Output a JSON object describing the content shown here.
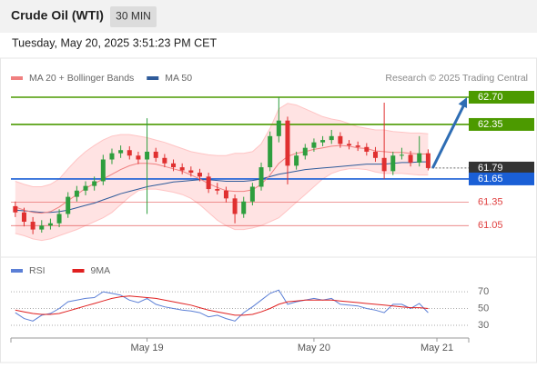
{
  "header": {
    "title": "Crude Oil (WTI)",
    "timeframe": "30 MIN",
    "timestamp": "Tuesday, May 20, 2025 3:51:23 PM CET"
  },
  "chart_data": {
    "type": "candlestick",
    "legend": [
      {
        "name": "MA 20 + Bollinger Bands",
        "color": "#f08080"
      },
      {
        "name": "MA 50",
        "color": "#2f5b9a"
      }
    ],
    "credit": "Research © 2025 Trading Central",
    "ylim": [
      60.68,
      62.84
    ],
    "up_color": "#2e9e3e",
    "down_color": "#e03030",
    "open": [
      61.3,
      61.22,
      61.1,
      61.0,
      61.05,
      61.08,
      61.2,
      61.42,
      61.5,
      61.56,
      61.62,
      61.9,
      61.98,
      62.02,
      61.95,
      61.9,
      62.0,
      61.92,
      61.85,
      61.8,
      61.76,
      61.73,
      61.68,
      61.52,
      61.5,
      61.4,
      61.2,
      61.36,
      61.55,
      61.8,
      62.2,
      62.4,
      61.82,
      61.95,
      62.05,
      62.12,
      62.15,
      62.2,
      62.1,
      62.08,
      62.06,
      62.0,
      61.92,
      61.75,
      61.95,
      61.96,
      61.86,
      61.98
    ],
    "high": [
      61.36,
      61.28,
      61.16,
      61.12,
      61.14,
      61.26,
      61.48,
      61.56,
      61.62,
      61.68,
      61.96,
      62.04,
      62.08,
      62.07,
      62.0,
      62.43,
      62.05,
      61.97,
      61.9,
      61.85,
      61.81,
      61.78,
      61.73,
      61.6,
      61.55,
      61.45,
      61.42,
      61.6,
      61.86,
      62.26,
      62.7,
      62.45,
      62.0,
      62.1,
      62.17,
      62.2,
      62.28,
      62.25,
      62.15,
      62.13,
      62.11,
      62.06,
      62.63,
      62.0,
      62.05,
      62.01,
      62.2,
      62.03
    ],
    "low": [
      61.16,
      61.04,
      60.94,
      60.96,
      61.0,
      61.03,
      61.15,
      61.36,
      61.44,
      61.5,
      61.57,
      61.84,
      61.92,
      61.9,
      61.84,
      61.2,
      61.87,
      61.8,
      61.75,
      61.71,
      61.68,
      61.62,
      61.47,
      61.45,
      61.35,
      61.08,
      61.15,
      61.31,
      61.5,
      61.75,
      62.12,
      61.58,
      61.77,
      61.9,
      62.0,
      62.07,
      62.1,
      62.05,
      62.03,
      62.01,
      61.95,
      61.87,
      61.65,
      61.7,
      61.9,
      61.81,
      61.81,
      61.76
    ],
    "close": [
      61.22,
      61.1,
      61.0,
      61.05,
      61.08,
      61.2,
      61.42,
      61.5,
      61.56,
      61.62,
      61.9,
      61.98,
      62.02,
      61.95,
      61.9,
      62.0,
      61.92,
      61.85,
      61.8,
      61.76,
      61.73,
      61.68,
      61.52,
      61.5,
      61.4,
      61.2,
      61.36,
      61.55,
      61.8,
      62.2,
      62.4,
      61.82,
      61.95,
      62.05,
      62.12,
      62.15,
      62.2,
      62.1,
      62.08,
      62.06,
      62.0,
      61.92,
      61.75,
      61.95,
      61.96,
      61.86,
      61.98,
      61.79
    ],
    "band_upper": [
      61.62,
      61.58,
      61.55,
      61.55,
      61.58,
      61.65,
      61.78,
      61.9,
      62.0,
      62.08,
      62.15,
      62.2,
      62.22,
      62.22,
      62.2,
      62.18,
      62.15,
      62.12,
      62.08,
      62.04,
      62.0,
      61.98,
      61.96,
      61.95,
      61.95,
      61.98,
      61.98,
      62.0,
      62.1,
      62.3,
      62.55,
      62.62,
      62.6,
      62.55,
      62.5,
      62.45,
      62.42,
      62.4,
      62.36,
      62.32,
      62.3,
      62.28,
      62.28,
      62.26,
      62.25,
      62.24,
      62.24,
      62.23
    ],
    "band_lower": [
      60.95,
      60.92,
      60.88,
      60.86,
      60.88,
      60.92,
      60.96,
      61.0,
      61.05,
      61.1,
      61.15,
      61.22,
      61.32,
      61.42,
      61.5,
      61.52,
      61.52,
      61.5,
      61.48,
      61.45,
      61.4,
      61.32,
      61.22,
      61.12,
      61.05,
      61.0,
      61.0,
      61.02,
      61.05,
      61.1,
      61.15,
      61.25,
      61.35,
      61.45,
      61.55,
      61.65,
      61.72,
      61.76,
      61.78,
      61.78,
      61.77,
      61.74,
      61.72,
      61.72,
      61.72,
      61.71,
      61.7,
      61.7
    ],
    "ma20": [
      61.29,
      61.25,
      61.22,
      61.21,
      61.23,
      61.29,
      61.37,
      61.45,
      61.53,
      61.59,
      61.65,
      61.71,
      61.77,
      61.82,
      61.85,
      61.85,
      61.84,
      61.81,
      61.78,
      61.75,
      61.7,
      61.65,
      61.59,
      61.54,
      61.5,
      61.49,
      61.49,
      61.51,
      61.58,
      61.7,
      61.85,
      61.94,
      61.98,
      62.0,
      62.03,
      62.05,
      62.07,
      62.08,
      62.07,
      62.05,
      62.04,
      62.01,
      62.0,
      61.99,
      61.99,
      61.98,
      61.97,
      61.97
    ],
    "ma50": [
      61.25,
      61.24,
      61.23,
      61.22,
      61.22,
      61.23,
      61.25,
      61.28,
      61.31,
      61.34,
      61.38,
      61.42,
      61.46,
      61.49,
      61.52,
      61.55,
      61.57,
      61.59,
      61.61,
      61.62,
      61.63,
      61.64,
      61.64,
      61.63,
      61.62,
      61.62,
      61.62,
      61.63,
      61.65,
      61.68,
      61.71,
      61.73,
      61.75,
      61.77,
      61.78,
      61.79,
      61.8,
      61.81,
      61.82,
      61.83,
      61.84,
      61.84,
      61.84,
      61.85,
      61.86,
      61.86,
      61.87,
      61.87
    ],
    "levels": [
      {
        "value": 62.7,
        "label": "62.70",
        "color": "#4c9a00",
        "label_style": "filled"
      },
      {
        "value": 62.35,
        "label": "62.35",
        "color": "#4c9a00",
        "label_style": "filled"
      },
      {
        "value": 61.79,
        "label": "61.79",
        "color": "#333333",
        "label_style": "filled"
      },
      {
        "value": 61.65,
        "label": "61.65",
        "color": "#1a5fd6",
        "label_style": "filled"
      },
      {
        "value": 61.35,
        "label": "61.35",
        "color": "#e04040",
        "label_style": "plain"
      },
      {
        "value": 61.05,
        "label": "61.05",
        "color": "#e04040",
        "label_style": "plain"
      }
    ],
    "xlabels": [
      {
        "index": 15,
        "label": "May 19"
      },
      {
        "index": 34,
        "label": "May 20"
      },
      {
        "index": 48,
        "label": "May 21"
      }
    ],
    "rsi": {
      "legend": [
        {
          "name": "RSI",
          "color": "#5b7fd6"
        },
        {
          "name": "9MA",
          "color": "#e02020"
        }
      ],
      "ylim": [
        18,
        82
      ],
      "yticks": [
        70,
        50,
        30
      ],
      "values": [
        45,
        38,
        35,
        42,
        44,
        50,
        58,
        60,
        62,
        63,
        70,
        68,
        66,
        60,
        57,
        62,
        55,
        52,
        50,
        48,
        47,
        45,
        40,
        42,
        38,
        35,
        45,
        52,
        60,
        68,
        72,
        55,
        58,
        60,
        62,
        60,
        62,
        55,
        54,
        53,
        50,
        48,
        45,
        55,
        55,
        50,
        56,
        45
      ],
      "ma": [
        48,
        46,
        44,
        43,
        43,
        44,
        47,
        50,
        53,
        56,
        59,
        62,
        64,
        65,
        64,
        63,
        62,
        60,
        58,
        56,
        54,
        51,
        48,
        46,
        44,
        42,
        42,
        43,
        46,
        50,
        55,
        58,
        59,
        60,
        60,
        60,
        60,
        59,
        58,
        57,
        56,
        55,
        54,
        53,
        52,
        51,
        51,
        50
      ]
    }
  }
}
